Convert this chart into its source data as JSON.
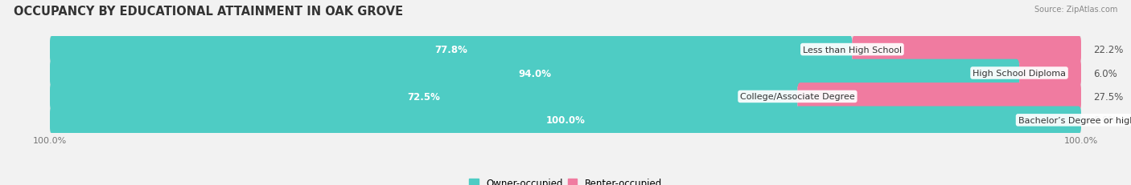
{
  "title": "OCCUPANCY BY EDUCATIONAL ATTAINMENT IN OAK GROVE",
  "source": "Source: ZipAtlas.com",
  "categories": [
    "Less than High School",
    "High School Diploma",
    "College/Associate Degree",
    "Bachelor’s Degree or higher"
  ],
  "owner_values": [
    77.8,
    94.0,
    72.5,
    100.0
  ],
  "renter_values": [
    22.2,
    6.0,
    27.5,
    0.0
  ],
  "owner_color": "#4ECCC4",
  "renter_color": "#F07BA0",
  "bg_color": "#f2f2f2",
  "bar_bg_color": "#e0e0e0",
  "title_fontsize": 10.5,
  "label_fontsize": 8.5,
  "cat_fontsize": 8.0,
  "tick_fontsize": 8,
  "bar_height": 0.62,
  "xlim": [
    0,
    100
  ]
}
